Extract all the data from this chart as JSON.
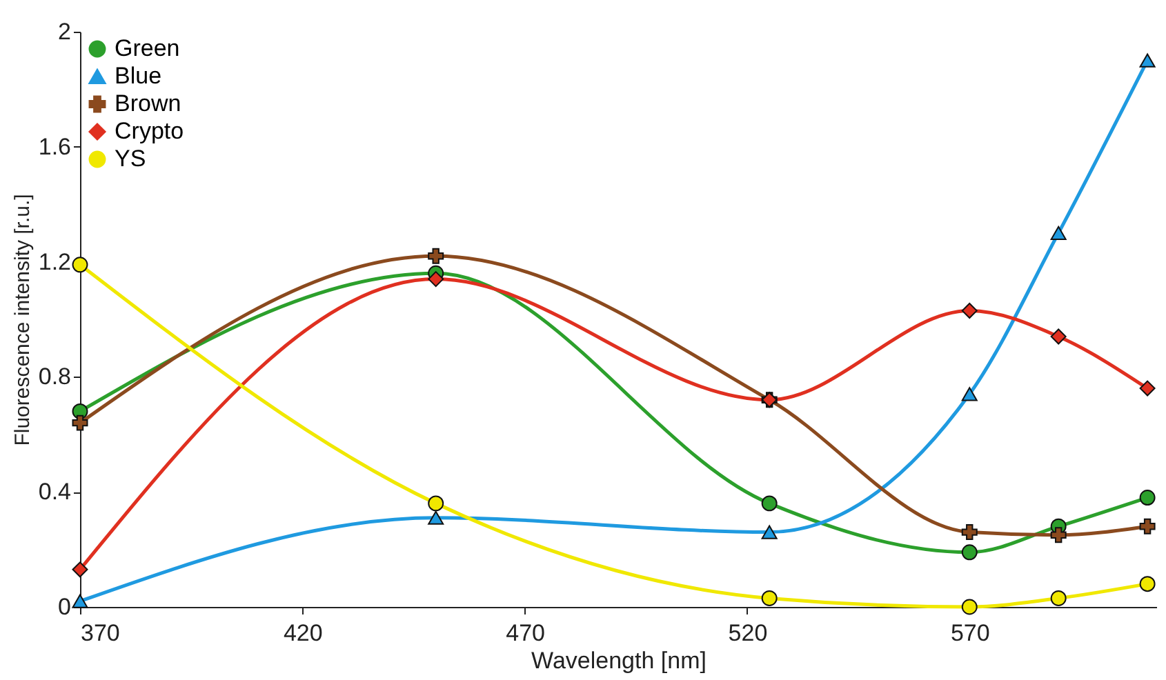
{
  "chart_data": {
    "type": "line",
    "xlabel": "Wavelength [nm]",
    "ylabel": "Fluorescence intensity [r.u.]",
    "x": [
      370,
      450,
      525,
      570,
      590,
      610
    ],
    "xlim": [
      370,
      612
    ],
    "xticks": [
      370,
      420,
      470,
      520,
      570
    ],
    "ylim": [
      0,
      2
    ],
    "yticks": [
      0,
      0.4,
      0.8,
      1.2,
      1.6,
      2
    ],
    "grid": false,
    "legend": "top left",
    "series": [
      {
        "name": "Green",
        "color": "#2ca02c",
        "marker": "circle",
        "values": [
          0.68,
          1.16,
          0.36,
          0.19,
          0.28,
          0.38
        ]
      },
      {
        "name": "Blue",
        "color": "#1f9ae0",
        "marker": "triangle",
        "values": [
          0.02,
          0.31,
          0.26,
          0.74,
          1.3,
          1.9
        ]
      },
      {
        "name": "Brown",
        "color": "#8b4a1e",
        "marker": "cross",
        "values": [
          0.64,
          1.22,
          0.72,
          0.26,
          0.25,
          0.28
        ]
      },
      {
        "name": "Crypto",
        "color": "#e03020",
        "marker": "diamond",
        "values": [
          0.13,
          1.14,
          0.72,
          1.03,
          0.94,
          0.76
        ]
      },
      {
        "name": "YS",
        "color": "#f0e800",
        "marker": "circle",
        "values": [
          1.19,
          0.36,
          0.03,
          0.0,
          0.03,
          0.08
        ]
      }
    ]
  }
}
